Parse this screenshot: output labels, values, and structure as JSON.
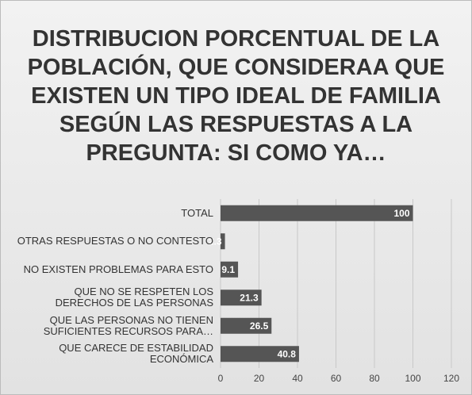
{
  "chart_data": {
    "type": "bar",
    "orientation": "horizontal",
    "title": "DISTRIBUCION PORCENTUAL DE LA POBLACIÓN, QUE CONSIDERAA QUE EXISTEN UN TIPO IDEAL DE FAMILIA SEGÚN LAS RESPUESTAS A LA PREGUNTA: SI COMO YA…",
    "categories": [
      "TOTAL",
      "OTRAS RESPUESTAS O NO CONTESTO",
      "NO EXISTEN PROBLEMAS PARA ESTO",
      "QUE NO SE RESPETEN LOS DERECHOS DE LAS PERSONAS",
      "QUE LAS PERSONAS NO TIENEN SUFICIENTES RECURSOS PARA…",
      "QUE CARECE DE ESTABILIDAD ECONÓMICA"
    ],
    "values": [
      100,
      2.3,
      9.1,
      21.3,
      26.5,
      40.8
    ],
    "color": "#555555",
    "xlim": [
      0,
      120
    ],
    "xticks": [
      0,
      20,
      40,
      60,
      80,
      100,
      120
    ],
    "grid": true
  }
}
